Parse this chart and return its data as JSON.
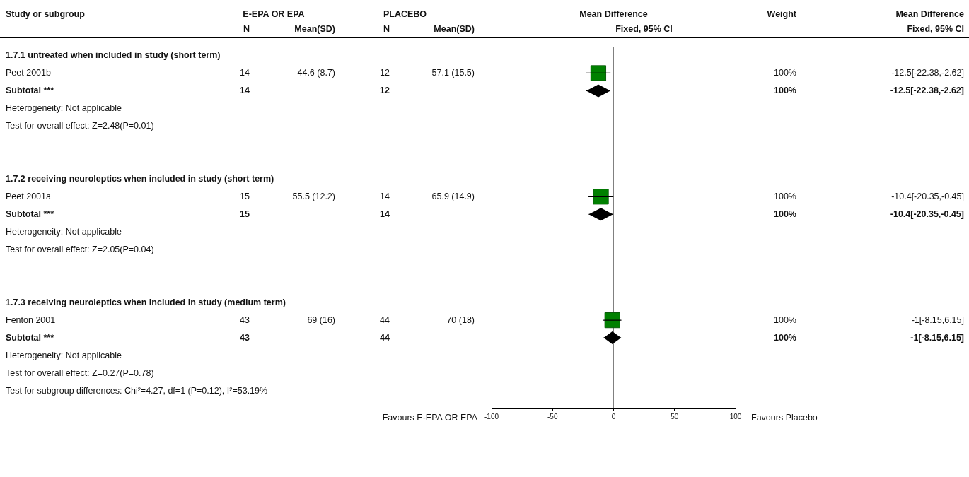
{
  "chart_data": [
    {
      "type": "other",
      "cell_labels": [
        [
          "Study or subgroup",
          "E-EPA OR EPA",
          null,
          "PLACEBO",
          null,
          "Mean Difference",
          "Weight",
          "Mean Difference"
        ],
        [
          null,
          "N",
          "Mean(SD)",
          "N",
          "Mean(SD)",
          "Fixed, 95% CI",
          null,
          "Fixed, 95% CI"
        ],
        [
          "1.7.1 untreated when included in study (short term)",
          null,
          null,
          null,
          null,
          null,
          null,
          null
        ],
        [
          "Peet 2001b",
          "14",
          "44.6 (8.7)",
          "12",
          "57.1 (15.5)",
          null,
          "100%",
          "-12.5[-22.38,-2.62]"
        ],
        [
          "Subtotal ***",
          "14",
          null,
          "12",
          null,
          null,
          "100%",
          "-12.5[-22.38,-2.62]"
        ],
        [
          "Heterogeneity: Not applicable",
          null,
          null,
          null,
          null,
          null,
          null,
          null
        ],
        [
          "Test for overall effect: Z=2.48(P=0.01)",
          null,
          null,
          null,
          null,
          null,
          null,
          null
        ],
        [
          null,
          null,
          null,
          null,
          null,
          null,
          null,
          null
        ],
        [
          null,
          null,
          null,
          null,
          null,
          null,
          null,
          null
        ],
        [
          "1.7.2 receiving neuroleptics when included in study (short term)",
          null,
          null,
          null,
          null,
          null,
          null,
          null
        ],
        [
          "Peet 2001a",
          "15",
          "55.5 (12.2)",
          "14",
          "65.9 (14.9)",
          null,
          "100%",
          "-10.4[-20.35,-0.45]"
        ],
        [
          "Subtotal ***",
          "15",
          null,
          "14",
          null,
          null,
          "100%",
          "-10.4[-20.35,-0.45]"
        ],
        [
          "Heterogeneity: Not applicable",
          null,
          null,
          null,
          null,
          null,
          null,
          null
        ],
        [
          "Test for overall effect: Z=2.05(P=0.04)",
          null,
          null,
          null,
          null,
          null,
          null,
          null
        ],
        [
          null,
          null,
          null,
          null,
          null,
          null,
          null,
          null
        ],
        [
          null,
          null,
          null,
          null,
          null,
          null,
          null,
          null
        ],
        [
          "1.7.3 receiving neuroleptics when included in study (medium term)",
          null,
          null,
          null,
          null,
          null,
          null,
          null
        ],
        [
          "Fenton 2001",
          "43",
          "69 (16)",
          "44",
          "70 (18)",
          null,
          "100%",
          "-1[-8.15,6.15]"
        ],
        [
          "Subtotal ***",
          "43",
          null,
          "44",
          null,
          null,
          "100%",
          "-1[-8.15,6.15]"
        ],
        [
          "Heterogeneity: Not applicable",
          null,
          null,
          null,
          null,
          null,
          null,
          null
        ],
        [
          "Test for overall effect: Z=0.27(P=0.78)",
          null,
          null,
          null,
          null,
          null,
          null,
          null
        ],
        [
          "Test for subgroup differences: Chi²=4.27, df=1 (P=0.12), I²=53.19%",
          null,
          null,
          null,
          null,
          null,
          null,
          null
        ]
      ]
    },
    {
      "type": "scatter",
      "orientation": "horizontal",
      "tick_labels": "x",
      "categories": [
        null,
        null,
        null,
        null,
        null,
        null,
        null,
        null,
        null,
        null,
        null,
        null,
        null,
        null,
        null,
        null,
        null,
        null,
        null,
        null
      ],
      "series": [
        {
          "marker": "square",
          "color": "#008000",
          "values": [
            null,
            -12.5,
            null,
            null,
            null,
            null,
            null,
            null,
            -10.4,
            null,
            null,
            null,
            null,
            null,
            null,
            -1,
            null,
            null,
            null,
            null
          ],
          "errors": [
            null,
            [
              -22.38,
              -2.62
            ],
            null,
            null,
            null,
            null,
            null,
            null,
            [
              -20.35,
              -0.45
            ],
            null,
            null,
            null,
            null,
            null,
            null,
            [
              -8.15,
              6.15
            ],
            null,
            null,
            null,
            null
          ]
        },
        {
          "marker": "diamond",
          "color": "#000000",
          "values": [
            null,
            null,
            -12.5,
            null,
            null,
            null,
            null,
            null,
            null,
            -10.4,
            null,
            null,
            null,
            null,
            null,
            null,
            -1,
            null,
            null,
            null
          ],
          "errors": [
            null,
            null,
            [
              -22.38,
              -2.62
            ],
            null,
            null,
            null,
            null,
            null,
            null,
            [
              -20.35,
              -0.45
            ],
            null,
            null,
            null,
            null,
            null,
            null,
            [
              -8.15,
              6.15
            ],
            null,
            null,
            null
          ]
        }
      ],
      "xlim": [
        -100,
        100
      ],
      "xticks": [
        -100,
        -50,
        0,
        50,
        100
      ],
      "ref_lines": [
        {
          "axis": "x",
          "value": 0,
          "color": "#808080"
        }
      ],
      "annotations": [
        "Favours E-EPA OR EPA",
        "Favours Placebo"
      ]
    }
  ]
}
